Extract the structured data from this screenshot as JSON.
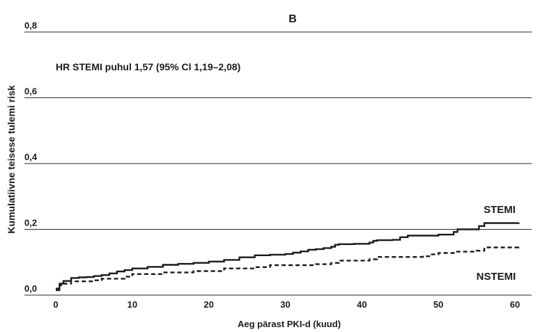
{
  "chart_data": {
    "type": "line",
    "title": "B",
    "annotation": "HR STEMI puhul 1,57 (95% Cl 1,19–2,08)",
    "xlabel": "Aeg pärast PKI-d (kuud)",
    "ylabel": "Kumulatiivne teisese tulemi risk",
    "xlim": [
      -1,
      62
    ],
    "ylim": [
      0,
      0.8
    ],
    "xticks": [
      0,
      10,
      20,
      30,
      40,
      50,
      60
    ],
    "xtick_labels": [
      "0",
      "10",
      "20",
      "30",
      "40",
      "50",
      "60"
    ],
    "yticks": [
      0,
      0.2,
      0.4,
      0.6,
      0.8
    ],
    "ytick_labels": [
      "0,0",
      "0,2",
      "0,4",
      "0,6",
      "0,8"
    ],
    "grid": "horizontal",
    "series": [
      {
        "name": "STEMI",
        "style": "solid",
        "color": "#1a1a1a",
        "x": [
          0,
          0.5,
          1,
          2,
          3,
          4,
          5,
          6,
          7,
          8,
          9,
          10,
          12,
          14,
          16,
          18,
          20,
          22,
          24,
          26,
          28,
          30,
          31,
          32,
          33,
          34,
          35,
          36,
          36.5,
          37,
          39,
          41,
          41.5,
          42,
          44,
          45,
          46,
          48,
          50,
          52,
          52.5,
          55,
          55.3,
          56,
          58,
          60.5
        ],
        "values": [
          0.02,
          0.035,
          0.043,
          0.052,
          0.054,
          0.055,
          0.058,
          0.061,
          0.066,
          0.072,
          0.076,
          0.081,
          0.086,
          0.092,
          0.095,
          0.098,
          0.102,
          0.107,
          0.115,
          0.121,
          0.123,
          0.125,
          0.129,
          0.133,
          0.138,
          0.14,
          0.143,
          0.147,
          0.153,
          0.155,
          0.156,
          0.16,
          0.165,
          0.167,
          0.168,
          0.176,
          0.181,
          0.181,
          0.184,
          0.192,
          0.2,
          0.2,
          0.21,
          0.219,
          0.219,
          0.22
        ]
      },
      {
        "name": "NSTEMI",
        "style": "dashed",
        "color": "#1a1a1a",
        "x": [
          0,
          0.5,
          1,
          2,
          5,
          6,
          9,
          10,
          14,
          18,
          22,
          26,
          28,
          34,
          36,
          37,
          41,
          42,
          48,
          49,
          50,
          52,
          55,
          56,
          60.5
        ],
        "values": [
          0.015,
          0.03,
          0.035,
          0.042,
          0.045,
          0.05,
          0.056,
          0.064,
          0.069,
          0.073,
          0.081,
          0.085,
          0.091,
          0.094,
          0.098,
          0.105,
          0.109,
          0.116,
          0.118,
          0.124,
          0.128,
          0.132,
          0.135,
          0.145,
          0.146
        ]
      }
    ],
    "series_labels": [
      "STEMI",
      "NSTEMI"
    ]
  }
}
